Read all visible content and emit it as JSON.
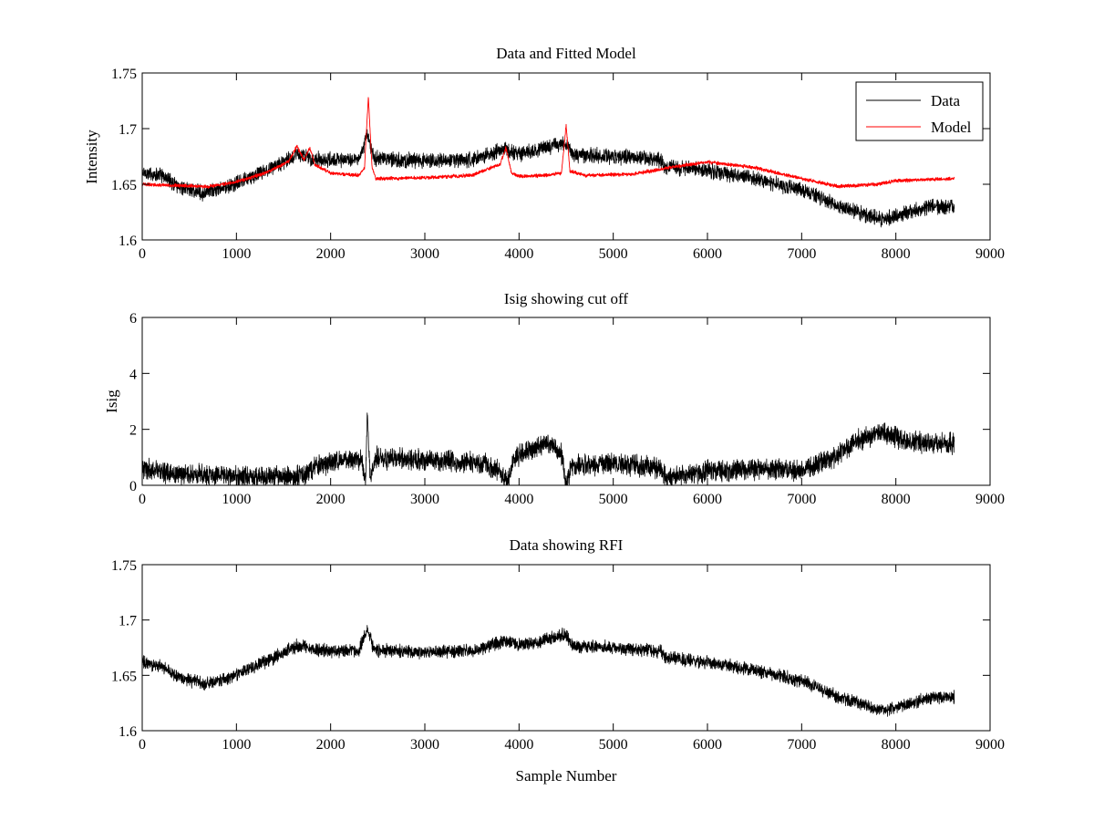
{
  "chart_data": [
    {
      "type": "line",
      "title": "Data and Fitted Model",
      "xlabel": "",
      "ylabel": "Intensity",
      "xlim": [
        0,
        9000
      ],
      "ylim": [
        1.6,
        1.75
      ],
      "xticks": [
        0,
        1000,
        2000,
        3000,
        4000,
        5000,
        6000,
        7000,
        8000,
        9000
      ],
      "yticks": [
        1.6,
        1.65,
        1.7,
        1.75
      ],
      "ytick_labels": [
        "1.6",
        "1.65",
        "1.7",
        "1.75"
      ],
      "grid": false,
      "legend_position": "top-right",
      "series": [
        {
          "name": "Data",
          "color": "#000000",
          "noise": 0.005,
          "points": [
            [
              0,
              1.66
            ],
            [
              200,
              1.658
            ],
            [
              400,
              1.648
            ],
            [
              650,
              1.642
            ],
            [
              900,
              1.647
            ],
            [
              1200,
              1.658
            ],
            [
              1450,
              1.668
            ],
            [
              1650,
              1.677
            ],
            [
              1800,
              1.673
            ],
            [
              2000,
              1.672
            ],
            [
              2300,
              1.672
            ],
            [
              2390,
              1.695
            ],
            [
              2460,
              1.673
            ],
            [
              3000,
              1.671
            ],
            [
              3500,
              1.672
            ],
            [
              3850,
              1.682
            ],
            [
              4000,
              1.677
            ],
            [
              4350,
              1.684
            ],
            [
              4500,
              1.688
            ],
            [
              4560,
              1.677
            ],
            [
              5000,
              1.675
            ],
            [
              5500,
              1.672
            ],
            [
              5550,
              1.666
            ],
            [
              6000,
              1.662
            ],
            [
              6500,
              1.655
            ],
            [
              7000,
              1.645
            ],
            [
              7400,
              1.63
            ],
            [
              7850,
              1.618
            ],
            [
              8100,
              1.624
            ],
            [
              8400,
              1.63
            ],
            [
              8620,
              1.63
            ]
          ]
        },
        {
          "name": "Model",
          "color": "#ff0000",
          "noise": 0.0012,
          "points": [
            [
              0,
              1.65
            ],
            [
              300,
              1.649
            ],
            [
              700,
              1.648
            ],
            [
              1000,
              1.652
            ],
            [
              1300,
              1.66
            ],
            [
              1550,
              1.67
            ],
            [
              1640,
              1.684
            ],
            [
              1720,
              1.672
            ],
            [
              1780,
              1.683
            ],
            [
              1830,
              1.668
            ],
            [
              2000,
              1.66
            ],
            [
              2300,
              1.658
            ],
            [
              2360,
              1.665
            ],
            [
              2400,
              1.729
            ],
            [
              2440,
              1.665
            ],
            [
              2480,
              1.655
            ],
            [
              3000,
              1.656
            ],
            [
              3500,
              1.658
            ],
            [
              3800,
              1.668
            ],
            [
              3860,
              1.683
            ],
            [
              3920,
              1.66
            ],
            [
              4000,
              1.657
            ],
            [
              4300,
              1.658
            ],
            [
              4450,
              1.66
            ],
            [
              4500,
              1.703
            ],
            [
              4540,
              1.662
            ],
            [
              4700,
              1.658
            ],
            [
              5200,
              1.659
            ],
            [
              5600,
              1.665
            ],
            [
              6000,
              1.67
            ],
            [
              6500,
              1.665
            ],
            [
              7000,
              1.655
            ],
            [
              7400,
              1.648
            ],
            [
              7800,
              1.65
            ],
            [
              8000,
              1.653
            ],
            [
              8200,
              1.654
            ],
            [
              8620,
              1.655
            ]
          ]
        }
      ]
    },
    {
      "type": "line",
      "title": "Isig showing cut off",
      "xlabel": "",
      "ylabel": "Isig",
      "xlim": [
        0,
        9000
      ],
      "ylim": [
        0,
        6
      ],
      "xticks": [
        0,
        1000,
        2000,
        3000,
        4000,
        5000,
        6000,
        7000,
        8000,
        9000
      ],
      "yticks": [
        0,
        2,
        4,
        6
      ],
      "ytick_labels": [
        "0",
        "2",
        "4",
        "6"
      ],
      "grid": false,
      "series": [
        {
          "color": "#000000",
          "noise": 0.28,
          "points": [
            [
              0,
              0.6
            ],
            [
              300,
              0.4
            ],
            [
              700,
              0.35
            ],
            [
              1200,
              0.3
            ],
            [
              1700,
              0.3
            ],
            [
              1850,
              0.7
            ],
            [
              2100,
              0.9
            ],
            [
              2330,
              0.9
            ],
            [
              2370,
              0.1
            ],
            [
              2390,
              2.5
            ],
            [
              2420,
              0.2
            ],
            [
              2480,
              1.0
            ],
            [
              3000,
              0.9
            ],
            [
              3600,
              0.8
            ],
            [
              3800,
              0.5
            ],
            [
              3880,
              0.05
            ],
            [
              3950,
              1.0
            ],
            [
              4200,
              1.4
            ],
            [
              4350,
              1.5
            ],
            [
              4450,
              1.1
            ],
            [
              4500,
              0.05
            ],
            [
              4560,
              0.7
            ],
            [
              5000,
              0.8
            ],
            [
              5500,
              0.6
            ],
            [
              5560,
              0.25
            ],
            [
              6000,
              0.5
            ],
            [
              6500,
              0.6
            ],
            [
              7000,
              0.55
            ],
            [
              7300,
              0.9
            ],
            [
              7600,
              1.6
            ],
            [
              7850,
              1.9
            ],
            [
              8100,
              1.6
            ],
            [
              8400,
              1.5
            ],
            [
              8620,
              1.5
            ]
          ]
        }
      ]
    },
    {
      "type": "line",
      "title": "Data showing RFI",
      "xlabel": "Sample Number",
      "ylabel": "",
      "xlim": [
        0,
        9000
      ],
      "ylim": [
        1.6,
        1.75
      ],
      "xticks": [
        0,
        1000,
        2000,
        3000,
        4000,
        5000,
        6000,
        7000,
        8000,
        9000
      ],
      "yticks": [
        1.6,
        1.65,
        1.7,
        1.75
      ],
      "ytick_labels": [
        "1.6",
        "1.65",
        "1.7",
        "1.75"
      ],
      "grid": false,
      "series": [
        {
          "color": "#000000",
          "noise": 0.0045,
          "points": [
            [
              0,
              1.662
            ],
            [
              200,
              1.658
            ],
            [
              400,
              1.648
            ],
            [
              650,
              1.642
            ],
            [
              900,
              1.647
            ],
            [
              1200,
              1.658
            ],
            [
              1450,
              1.668
            ],
            [
              1650,
              1.677
            ],
            [
              1800,
              1.673
            ],
            [
              2000,
              1.672
            ],
            [
              2300,
              1.672
            ],
            [
              2390,
              1.693
            ],
            [
              2460,
              1.673
            ],
            [
              3000,
              1.671
            ],
            [
              3500,
              1.672
            ],
            [
              3850,
              1.682
            ],
            [
              4000,
              1.677
            ],
            [
              4350,
              1.684
            ],
            [
              4500,
              1.688
            ],
            [
              4560,
              1.677
            ],
            [
              5000,
              1.675
            ],
            [
              5500,
              1.672
            ],
            [
              5550,
              1.666
            ],
            [
              6000,
              1.662
            ],
            [
              6500,
              1.655
            ],
            [
              7000,
              1.645
            ],
            [
              7400,
              1.63
            ],
            [
              7850,
              1.618
            ],
            [
              8100,
              1.624
            ],
            [
              8400,
              1.63
            ],
            [
              8620,
              1.63
            ]
          ]
        }
      ]
    }
  ]
}
